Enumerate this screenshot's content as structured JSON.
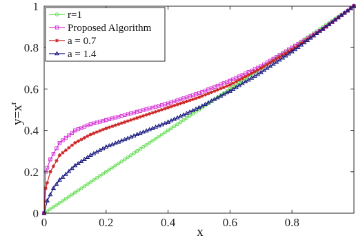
{
  "chart_data": {
    "type": "line",
    "xlabel": "x",
    "ylabel_base": "y=x",
    "ylabel_sup": "r",
    "xlim": [
      0,
      1
    ],
    "ylim": [
      0,
      1
    ],
    "xticks": [
      0,
      0.2,
      0.4,
      0.6,
      0.8
    ],
    "xtick_labels": [
      "0",
      "0.2",
      "0.4",
      "0.6",
      "0.8"
    ],
    "yticks": [
      0,
      0.2,
      0.4,
      0.6,
      0.8,
      1
    ],
    "ytick_labels": [
      "0",
      "0.2",
      "0.4",
      "0.6",
      "0.8",
      "1"
    ],
    "grid": false,
    "legend_position": "top-left",
    "series": [
      {
        "name": "r=1",
        "color": "#66dd55",
        "marker": "circle",
        "x": [
          0,
          0.1,
          0.2,
          0.3,
          0.4,
          0.5,
          0.6,
          0.7,
          0.8,
          0.9,
          1.0
        ],
        "y": [
          0,
          0.1,
          0.2,
          0.3,
          0.4,
          0.5,
          0.6,
          0.7,
          0.8,
          0.9,
          1.0
        ]
      },
      {
        "name": "Proposed Algorithm",
        "color": "#d633d6",
        "marker": "square",
        "x": [
          0,
          0.005,
          0.02,
          0.05,
          0.1,
          0.15,
          0.2,
          0.3,
          0.4,
          0.5,
          0.6,
          0.7,
          0.8,
          0.9,
          1.0
        ],
        "y": [
          0,
          0.2,
          0.26,
          0.34,
          0.4,
          0.43,
          0.45,
          0.49,
          0.53,
          0.58,
          0.64,
          0.71,
          0.8,
          0.89,
          1.0
        ]
      },
      {
        "name": "a = 0.7",
        "color": "#cc2222",
        "marker": "star",
        "x": [
          0,
          0.005,
          0.02,
          0.05,
          0.1,
          0.15,
          0.2,
          0.3,
          0.4,
          0.5,
          0.6,
          0.7,
          0.8,
          0.9,
          1.0
        ],
        "y": [
          0,
          0.12,
          0.2,
          0.28,
          0.34,
          0.38,
          0.41,
          0.46,
          0.51,
          0.56,
          0.62,
          0.7,
          0.79,
          0.89,
          1.0
        ]
      },
      {
        "name": "a = 1.4",
        "color": "#1a1a80",
        "marker": "triangle",
        "x": [
          0,
          0.01,
          0.03,
          0.05,
          0.1,
          0.15,
          0.2,
          0.3,
          0.4,
          0.5,
          0.6,
          0.7,
          0.8,
          0.9,
          1.0
        ],
        "y": [
          0,
          0.06,
          0.12,
          0.16,
          0.23,
          0.28,
          0.32,
          0.38,
          0.44,
          0.51,
          0.59,
          0.68,
          0.78,
          0.89,
          1.0
        ]
      }
    ]
  }
}
